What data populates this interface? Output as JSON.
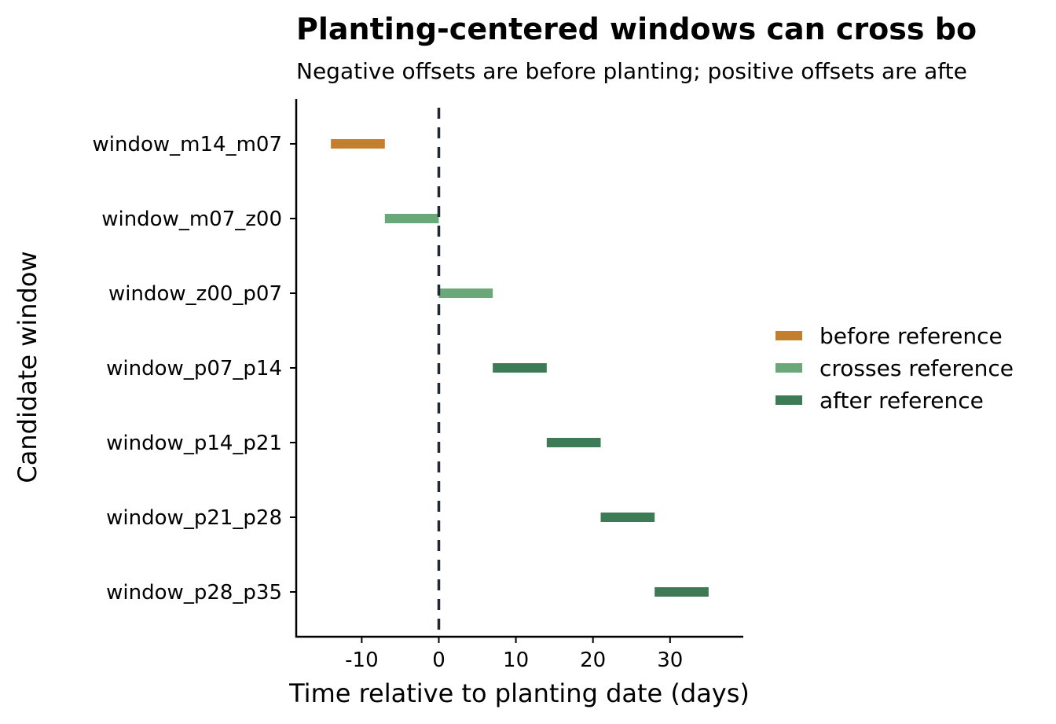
{
  "chart_data": {
    "type": "range-bar",
    "title": "Planting-centered windows can cross bo",
    "subtitle": "Negative offsets are before planting; positive offsets are afte",
    "xlabel": "Time relative to planting date (days)",
    "ylabel": "Candidate window",
    "xlim": [
      -18.5,
      39.5
    ],
    "x_ticks": [
      -10,
      0,
      10,
      20,
      30
    ],
    "x_tick_labels": [
      "-10",
      "0",
      "10",
      "20",
      "30"
    ],
    "reference_line": {
      "x": 0,
      "style": "dashed"
    },
    "grid": false,
    "legend_position": "right",
    "categories": [
      "window_m14_m07",
      "window_m07_z00",
      "window_z00_p07",
      "window_p07_p14",
      "window_p14_p21",
      "window_p21_p28",
      "window_p28_p35"
    ],
    "ranges": [
      {
        "category": "window_m14_m07",
        "start": -14,
        "end": -7,
        "group": "before reference"
      },
      {
        "category": "window_m07_z00",
        "start": -7,
        "end": 0,
        "group": "crosses reference"
      },
      {
        "category": "window_z00_p07",
        "start": 0,
        "end": 7,
        "group": "crosses reference"
      },
      {
        "category": "window_p07_p14",
        "start": 7,
        "end": 14,
        "group": "after reference"
      },
      {
        "category": "window_p14_p21",
        "start": 14,
        "end": 21,
        "group": "after reference"
      },
      {
        "category": "window_p21_p28",
        "start": 21,
        "end": 28,
        "group": "after reference"
      },
      {
        "category": "window_p28_p35",
        "start": 28,
        "end": 35,
        "group": "after reference"
      }
    ],
    "legend": [
      {
        "label": "before reference",
        "color": "#c47f2c"
      },
      {
        "label": "crosses reference",
        "color": "#6aa87a"
      },
      {
        "label": "after reference",
        "color": "#3d7b57"
      }
    ]
  }
}
